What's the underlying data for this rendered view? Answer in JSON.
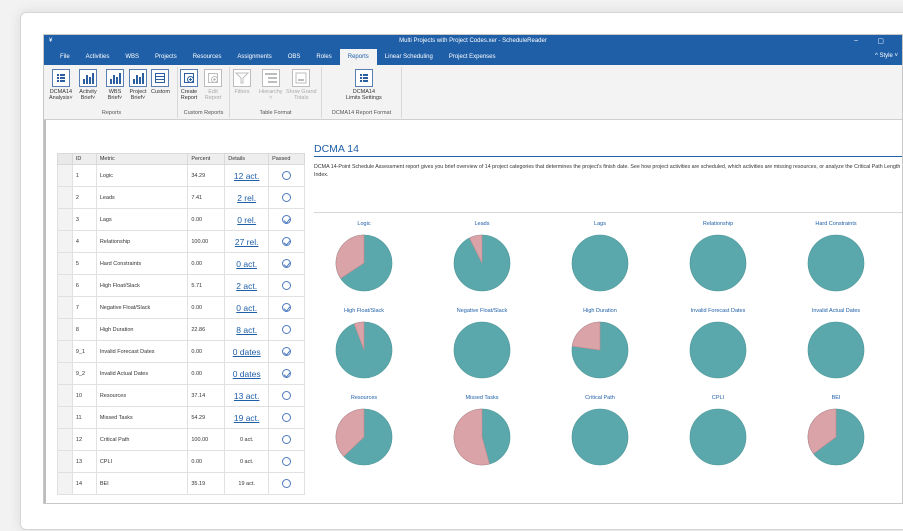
{
  "window": {
    "title": "Multi Projects with Project Codes.xer - ScheduleReader",
    "icon": "app-icon",
    "min": "–",
    "max": "▢"
  },
  "menu": {
    "items": [
      "File",
      "Activities",
      "WBS",
      "Projects",
      "Resources",
      "Assignments",
      "OBS",
      "Roles",
      "Reports",
      "Linear Scheduling",
      "Project Expenses"
    ],
    "active": "Reports",
    "style": "^  Style ˅"
  },
  "ribbon": {
    "reports_group": {
      "label": "Reports",
      "buttons": [
        {
          "label1": "DCMA14",
          "label2": "Analysis˅"
        },
        {
          "label1": "Activity",
          "label2": "Brief˅"
        },
        {
          "label1": "WBS",
          "label2": "Brief˅"
        },
        {
          "label1": "Project",
          "label2": "Brief˅"
        },
        {
          "label1": "Custom",
          "label2": ""
        }
      ]
    },
    "custom_group": {
      "label": "Custom Reports",
      "buttons": [
        {
          "label1": "Create",
          "label2": "Report"
        },
        {
          "label1": "Edit",
          "label2": "Report"
        }
      ]
    },
    "table_group": {
      "label": "Table Format",
      "buttons": [
        {
          "label1": "Filters",
          "label2": ""
        },
        {
          "label1": "Hierarchy",
          "label2": "˅"
        },
        {
          "label1": "Show Grand",
          "label2": "Totals"
        }
      ]
    },
    "dcma_group": {
      "label": "DCMA14 Report Format",
      "buttons": [
        {
          "label1": "DCMA14",
          "label2": "Limits Settings"
        }
      ]
    }
  },
  "table": {
    "headers": [
      "ID",
      "Metric",
      "Percent",
      "Details",
      "Passed"
    ],
    "rows": [
      {
        "id": "1",
        "metric": "Logic",
        "percent": "34.29",
        "details": "12 act.",
        "link": true,
        "passed": false
      },
      {
        "id": "2",
        "metric": "Leads",
        "percent": "7.41",
        "details": "2 rel.",
        "link": true,
        "passed": false
      },
      {
        "id": "3",
        "metric": "Lags",
        "percent": "0.00",
        "details": "0 rel.",
        "link": true,
        "passed": true
      },
      {
        "id": "4",
        "metric": "Relationship",
        "percent": "100.00",
        "details": "27 rel.",
        "link": true,
        "passed": true
      },
      {
        "id": "5",
        "metric": "Hard Constraints",
        "percent": "0.00",
        "details": "0 act.",
        "link": true,
        "passed": true
      },
      {
        "id": "6",
        "metric": "High Float/Slack",
        "percent": "5.71",
        "details": "2 act.",
        "link": true,
        "passed": false
      },
      {
        "id": "7",
        "metric": "Negative Float/Slack",
        "percent": "0.00",
        "details": "0 act.",
        "link": true,
        "passed": true
      },
      {
        "id": "8",
        "metric": "High Duration",
        "percent": "22.86",
        "details": "8 act.",
        "link": true,
        "passed": false
      },
      {
        "id": "9_1",
        "metric": "Invalid Forecast Dates",
        "percent": "0.00",
        "details": "0 dates",
        "link": true,
        "passed": true
      },
      {
        "id": "9_2",
        "metric": "Invalid Actual Dates",
        "percent": "0.00",
        "details": "0 dates",
        "link": true,
        "passed": true
      },
      {
        "id": "10",
        "metric": "Resources",
        "percent": "37.14",
        "details": "13 act.",
        "link": true,
        "passed": false
      },
      {
        "id": "11",
        "metric": "Missed Tasks",
        "percent": "54.29",
        "details": "19 act.",
        "link": true,
        "passed": false
      },
      {
        "id": "12",
        "metric": "Critical Path",
        "percent": "100.00",
        "details": "0 act.",
        "link": false,
        "passed": false
      },
      {
        "id": "13",
        "metric": "CPLI",
        "percent": "0.00",
        "details": "0 act.",
        "link": false,
        "passed": false
      },
      {
        "id": "14",
        "metric": "BEI",
        "percent": "35.19",
        "details": "19 act.",
        "link": false,
        "passed": false
      }
    ]
  },
  "report": {
    "title": "DCMA 14",
    "description": "DCMA 14-Point Schedule Assessment report gives you brief overview of 14 project categories that determines the project's finish date. See how project activities are scheduled, which activities are missing resources, or analyze the Critical Path Length Index."
  },
  "colors": {
    "pie_main": "#5aa8ab",
    "pie_fail": "#d9a3a8",
    "accent": "#1f5fa8"
  },
  "pies": [
    {
      "label": "Logic",
      "fail": 0.3429
    },
    {
      "label": "Leads",
      "fail": 0.0741
    },
    {
      "label": "Lags",
      "fail": 0
    },
    {
      "label": "Relationship",
      "fail": 0
    },
    {
      "label": "Hard Constraints",
      "fail": 0
    },
    {
      "label": "High Float/Slack",
      "fail": 0.0571
    },
    {
      "label": "Negative Float/Slack",
      "fail": 0
    },
    {
      "label": "High Duration",
      "fail": 0.2286
    },
    {
      "label": "Invalid Forecast Dates",
      "fail": 0
    },
    {
      "label": "Invalid Actual Dates",
      "fail": 0
    },
    {
      "label": "Resources",
      "fail": 0.3714
    },
    {
      "label": "Missed Tasks",
      "fail": 0.5429
    },
    {
      "label": "Critical Path",
      "fail": 0
    },
    {
      "label": "CPLI",
      "fail": 0
    },
    {
      "label": "BEI",
      "fail": 0.3519
    }
  ]
}
